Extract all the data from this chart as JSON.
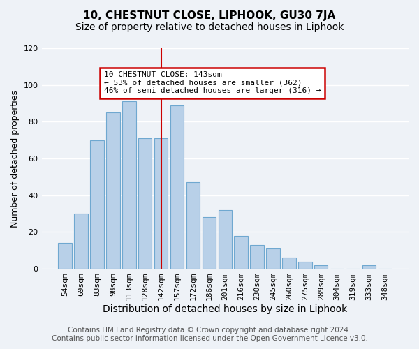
{
  "title": "10, CHESTNUT CLOSE, LIPHOOK, GU30 7JA",
  "subtitle": "Size of property relative to detached houses in Liphook",
  "xlabel": "Distribution of detached houses by size in Liphook",
  "ylabel": "Number of detached properties",
  "bar_labels": [
    "54sqm",
    "69sqm",
    "83sqm",
    "98sqm",
    "113sqm",
    "128sqm",
    "142sqm",
    "157sqm",
    "172sqm",
    "186sqm",
    "201sqm",
    "216sqm",
    "230sqm",
    "245sqm",
    "260sqm",
    "275sqm",
    "289sqm",
    "304sqm",
    "319sqm",
    "333sqm",
    "348sqm"
  ],
  "bar_values": [
    14,
    30,
    70,
    85,
    91,
    71,
    71,
    89,
    47,
    28,
    32,
    18,
    13,
    11,
    6,
    4,
    2,
    0,
    0,
    2,
    0
  ],
  "bar_color": "#b8d0e8",
  "bar_edge_color": "#6fa8d0",
  "vline_x_index": 6,
  "vline_color": "#cc0000",
  "ylim": [
    0,
    120
  ],
  "yticks": [
    0,
    20,
    40,
    60,
    80,
    100,
    120
  ],
  "annotation_title": "10 CHESTNUT CLOSE: 143sqm",
  "annotation_line1": "← 53% of detached houses are smaller (362)",
  "annotation_line2": "46% of semi-detached houses are larger (316) →",
  "annotation_box_color": "#ffffff",
  "annotation_box_edge_color": "#cc0000",
  "footer_line1": "Contains HM Land Registry data © Crown copyright and database right 2024.",
  "footer_line2": "Contains public sector information licensed under the Open Government Licence v3.0.",
  "background_color": "#eef2f7",
  "grid_color": "#ffffff",
  "title_fontsize": 11,
  "subtitle_fontsize": 10,
  "xlabel_fontsize": 10,
  "ylabel_fontsize": 9,
  "tick_fontsize": 8,
  "footer_fontsize": 7.5
}
